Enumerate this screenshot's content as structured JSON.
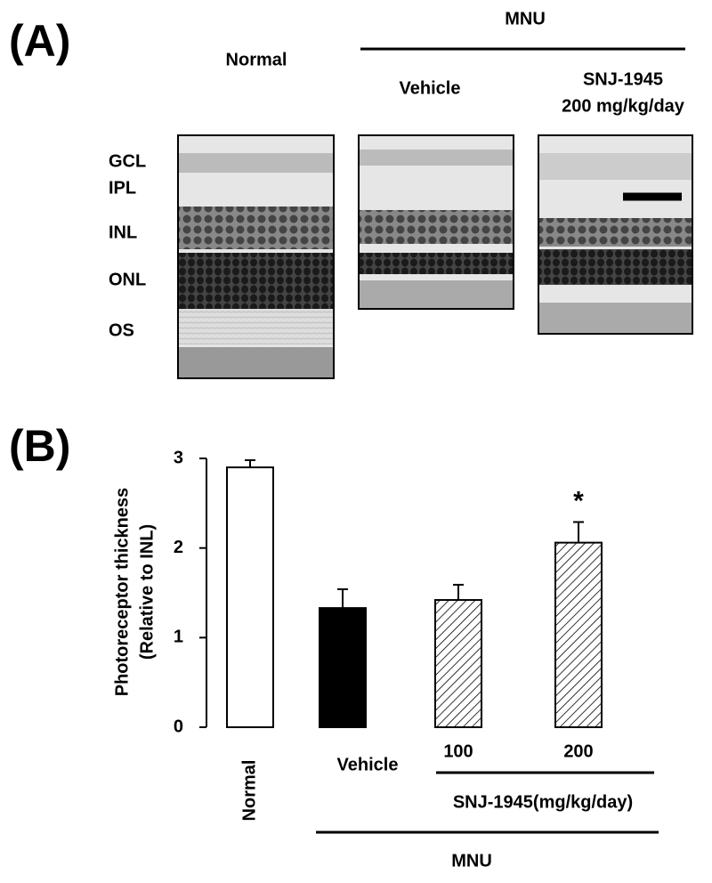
{
  "panel_a": {
    "label": "(A)",
    "normal": "Normal",
    "mnu": "MNU",
    "vehicle": "Vehicle",
    "treatment_line1": "SNJ-1945",
    "treatment_line2": "200 mg/kg/day",
    "layers": [
      "GCL",
      "IPL",
      "INL",
      "ONL",
      "OS"
    ]
  },
  "chart_data": {
    "type": "bar",
    "panel_label": "(B)",
    "y_label": [
      "Photoreceptor thickness",
      "(Relative to INL)"
    ],
    "categories": [
      "Normal",
      "Vehicle",
      "100",
      "200"
    ],
    "values": [
      2.9,
      1.33,
      1.42,
      2.06
    ],
    "errors": [
      0.08,
      0.21,
      0.17,
      0.23
    ],
    "colors": [
      "#ffffff",
      "#000000",
      "#ffffff",
      "#ffffff"
    ],
    "hatched": [
      false,
      false,
      true,
      true
    ],
    "annotations": [
      null,
      null,
      null,
      "*"
    ],
    "group_labels": [
      "SNJ-1945(mg/kg/day)",
      "MNU"
    ],
    "ylim": [
      0,
      3
    ],
    "yticks": [
      0,
      1,
      2,
      3
    ],
    "grid": false
  }
}
